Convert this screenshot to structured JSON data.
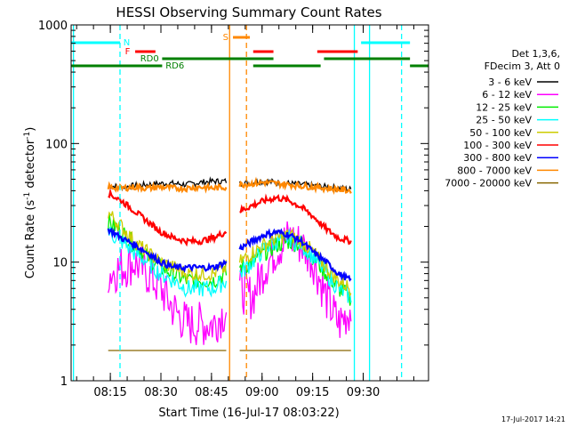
{
  "chart_data": {
    "type": "line",
    "title": "HESSI Observing Summary Count Rates",
    "xlabel": "Start Time (16-Jul-17 08:03:22)",
    "ylabel_parts": [
      "Count Rate (s",
      "-1",
      " detector",
      "-1",
      ")"
    ],
    "xlim_minutes": [
      0,
      106
    ],
    "ylim": [
      1,
      1000
    ],
    "yscale": "log",
    "x_ticks": [
      {
        "label": "08:15",
        "min": 11.63
      },
      {
        "label": "08:30",
        "min": 26.63
      },
      {
        "label": "08:45",
        "min": 41.63
      },
      {
        "label": "09:00",
        "min": 56.63
      },
      {
        "label": "09:15",
        "min": 71.63
      },
      {
        "label": "09:30",
        "min": 86.63
      }
    ],
    "y_ticks": [
      {
        "label": "1",
        "value": 1
      },
      {
        "label": "10",
        "value": 10
      },
      {
        "label": "100",
        "value": 100
      },
      {
        "label": "1000",
        "value": 1000
      }
    ],
    "legend_header": [
      "Det 1,3,6,",
      "FDecim 3, Att 0"
    ],
    "series": [
      {
        "name": "3 - 6 keV",
        "color": "#000000",
        "values_seg1": [
          44,
          43,
          44,
          45,
          46,
          46,
          45,
          47,
          48,
          48
        ],
        "values_seg2": [
          46,
          47,
          48,
          47,
          46,
          45,
          44,
          43,
          42,
          41
        ]
      },
      {
        "name": "6 - 12 keV",
        "color": "#ff00ff",
        "values_seg1": [
          8,
          9,
          10,
          8,
          6,
          4,
          3,
          3,
          3,
          4
        ],
        "values_seg2": [
          6,
          5,
          9,
          13,
          16,
          14,
          10,
          5,
          3,
          4
        ]
      },
      {
        "name": "12 - 25 keV",
        "color": "#00ee00",
        "values_seg1": [
          22,
          18,
          14,
          11,
          9,
          8,
          7,
          7,
          7,
          8
        ],
        "values_seg2": [
          9,
          10,
          12,
          14,
          15,
          14,
          11,
          8,
          6,
          5
        ]
      },
      {
        "name": "25 - 50 keV",
        "color": "#00ffff",
        "values_seg1": [
          18,
          15,
          12,
          10,
          8,
          7,
          6,
          6,
          6,
          7
        ],
        "values_seg2": [
          8,
          10,
          13,
          15,
          16,
          14,
          11,
          8,
          6,
          5
        ]
      },
      {
        "name": "50 - 100 keV",
        "color": "#cccc00",
        "values_seg1": [
          26,
          20,
          15,
          12,
          10,
          9,
          8,
          8,
          8,
          9
        ],
        "values_seg2": [
          10,
          12,
          14,
          16,
          17,
          15,
          12,
          9,
          7,
          6
        ]
      },
      {
        "name": "100 - 300 keV",
        "color": "#ff0000",
        "values_seg1": [
          38,
          33,
          27,
          22,
          18,
          16,
          15,
          15,
          16,
          18
        ],
        "values_seg2": [
          27,
          30,
          33,
          35,
          33,
          29,
          24,
          19,
          16,
          15
        ]
      },
      {
        "name": "300 - 800 keV",
        "color": "#0000ff",
        "values_seg1": [
          19,
          16,
          14,
          12,
          10,
          9,
          9,
          9,
          9,
          10
        ],
        "values_seg2": [
          13,
          15,
          17,
          18,
          17,
          15,
          12,
          10,
          8,
          7
        ]
      },
      {
        "name": "800 - 7000 keV",
        "color": "#ff8800",
        "values_seg1": [
          43,
          42,
          43,
          42,
          43,
          42,
          42,
          43,
          42,
          43
        ],
        "values_seg2": [
          45,
          46,
          47,
          46,
          45,
          44,
          43,
          42,
          41,
          40
        ]
      },
      {
        "name": "7000 - 20000 keV",
        "color": "#886600",
        "values_seg1": [
          1.8
        ],
        "values_seg2": [
          1.8
        ]
      }
    ],
    "segment1_minutes": [
      11,
      46
    ],
    "segment2_minutes": [
      50,
      83
    ],
    "flag_labels": [
      "N",
      "F",
      "S",
      "RD0",
      "RD6"
    ],
    "timestamp": "17-Jul-2017 14:21"
  }
}
